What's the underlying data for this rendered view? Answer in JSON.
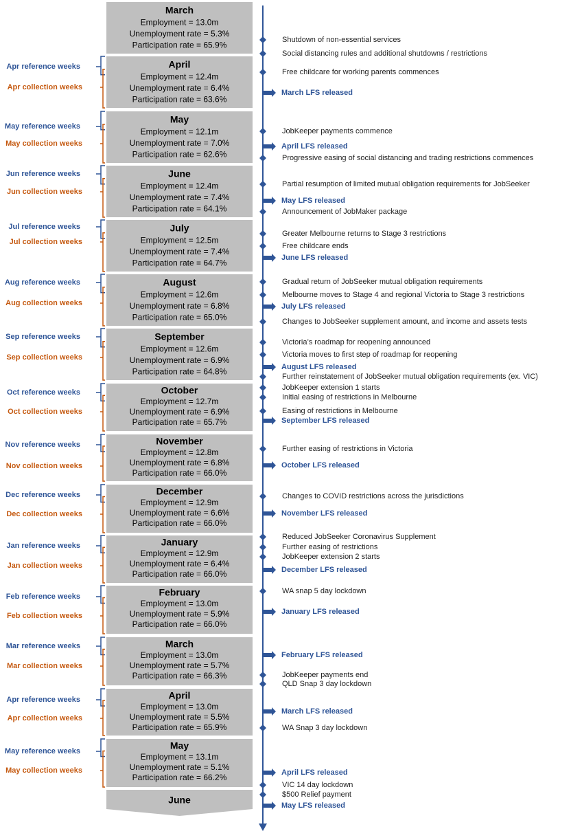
{
  "months": [
    {
      "title": "March",
      "employment": "Employment = 13.0m",
      "unemployment": "Unemployment rate = 5.3%",
      "participation": "Participation rate = 65.9%"
    },
    {
      "title": "April",
      "employment": "Employment = 12.4m",
      "unemployment": "Unemployment rate = 6.4%",
      "participation": "Participation rate = 63.6%"
    },
    {
      "title": "May",
      "employment": "Employment = 12.1m",
      "unemployment": "Unemployment rate = 7.0%",
      "participation": "Participation rate = 62.6%"
    },
    {
      "title": "June",
      "employment": "Employment = 12.4m",
      "unemployment": "Unemployment rate = 7.4%",
      "participation": "Participation rate = 64.1%"
    },
    {
      "title": "July",
      "employment": "Employment = 12.5m",
      "unemployment": "Unemployment rate = 7.4%",
      "participation": "Participation rate = 64.7%"
    },
    {
      "title": "August",
      "employment": "Employment = 12.6m",
      "unemployment": "Unemployment rate = 6.8%",
      "participation": "Participation rate = 65.0%"
    },
    {
      "title": "September",
      "employment": "Employment = 12.6m",
      "unemployment": "Unemployment rate = 6.9%",
      "participation": "Participation rate = 64.8%"
    },
    {
      "title": "October",
      "employment": "Employment = 12.7m",
      "unemployment": "Unemployment rate = 6.9%",
      "participation": "Participation rate = 65.7%"
    },
    {
      "title": "November",
      "employment": "Employment = 12.8m",
      "unemployment": "Unemployment rate = 6.8%",
      "participation": "Participation rate = 66.0%"
    },
    {
      "title": "December",
      "employment": "Employment = 12.9m",
      "unemployment": "Unemployment rate = 6.6%",
      "participation": "Participation rate = 66.0%"
    },
    {
      "title": "January",
      "employment": "Employment = 12.9m",
      "unemployment": "Unemployment rate = 6.4%",
      "participation": "Participation rate = 66.0%"
    },
    {
      "title": "February",
      "employment": "Employment = 13.0m",
      "unemployment": "Unemployment rate = 5.9%",
      "participation": "Participation rate = 66.0%"
    },
    {
      "title": "March",
      "employment": "Employment = 13.0m",
      "unemployment": "Unemployment rate = 5.7%",
      "participation": "Participation rate = 66.3%"
    },
    {
      "title": "April",
      "employment": "Employment = 13.0m",
      "unemployment": "Unemployment rate = 5.5%",
      "participation": "Participation rate = 65.9%"
    },
    {
      "title": "May",
      "employment": "Employment = 13.1m",
      "unemployment": "Unemployment rate = 5.1%",
      "participation": "Participation rate = 66.2%"
    },
    {
      "title": "June"
    }
  ],
  "weeks": [
    {
      "reference": "Apr reference weeks",
      "collection": "Apr collection weeks"
    },
    {
      "reference": "May reference weeks",
      "collection": "May collection weeks"
    },
    {
      "reference": "Jun reference weeks",
      "collection": "Jun collection weeks"
    },
    {
      "reference": "Jul reference weeks",
      "collection": "Jul collection weeks"
    },
    {
      "reference": "Aug reference weeks",
      "collection": "Aug collection weeks"
    },
    {
      "reference": "Sep reference weeks",
      "collection": "Sep collection weeks"
    },
    {
      "reference": "Oct reference weeks",
      "collection": "Oct collection weeks"
    },
    {
      "reference": "Nov reference weeks",
      "collection": "Nov collection weeks"
    },
    {
      "reference": "Dec reference weeks",
      "collection": "Dec collection weeks"
    },
    {
      "reference": "Jan reference weeks",
      "collection": "Jan collection weeks"
    },
    {
      "reference": "Feb reference weeks",
      "collection": "Feb collection weeks"
    },
    {
      "reference": "Mar reference weeks",
      "collection": "Mar collection weeks"
    },
    {
      "reference": "Apr reference weeks",
      "collection": "Apr collection weeks"
    },
    {
      "reference": "May reference weeks",
      "collection": "May collection weeks"
    }
  ],
  "events": [
    "Shutdown of non-essential services",
    "Social distancing rules and additional shutdowns / restrictions",
    "Free childcare for working parents commences",
    "March LFS released",
    "JobKeeper payments commence",
    "April LFS released",
    "Progressive easing of social distancing and trading restrictions commences",
    "Partial resumption of limited mutual obligation requirements for JobSeeker",
    "May LFS released",
    "Announcement of JobMaker package",
    "Greater Melbourne returns to Stage 3 restrictions",
    "Free childcare ends",
    "June LFS released",
    "Gradual return of JobSeeker mutual obligation requirements",
    "Melbourne moves to Stage 4 and regional Victoria to Stage 3 restrictions",
    "July LFS released",
    "Changes to JobSeeker supplement amount, and income and assets tests",
    "Victoria’s roadmap for reopening announced",
    "Victoria moves to first step of roadmap for reopening",
    "August LFS released",
    "Further reinstatement of JobSeeker mutual obligation requirements (ex. VIC)",
    "JobKeeper extension 1 starts",
    "Initial easing of restrictions in Melbourne",
    "Easing of restrictions in Melbourne",
    "September LFS released",
    "Further easing of restrictions in Victoria",
    "October LFS released",
    "Changes to COVID restrictions across the jurisdictions",
    "November LFS released",
    "Reduced JobSeeker Coronavirus Supplement",
    "Further easing of restrictions",
    "JobKeeper extension 2 starts",
    "December LFS released",
    "WA snap 5 day lockdown",
    "January LFS released",
    "February LFS released",
    "JobKeeper payments end",
    "QLD  Snap 3 day lockdown",
    "March LFS released",
    "WA  Snap 3 day lockdown",
    "April LFS released",
    "VIC  14 day lockdown",
    "$500 Relief payment",
    "May LFS released"
  ]
}
